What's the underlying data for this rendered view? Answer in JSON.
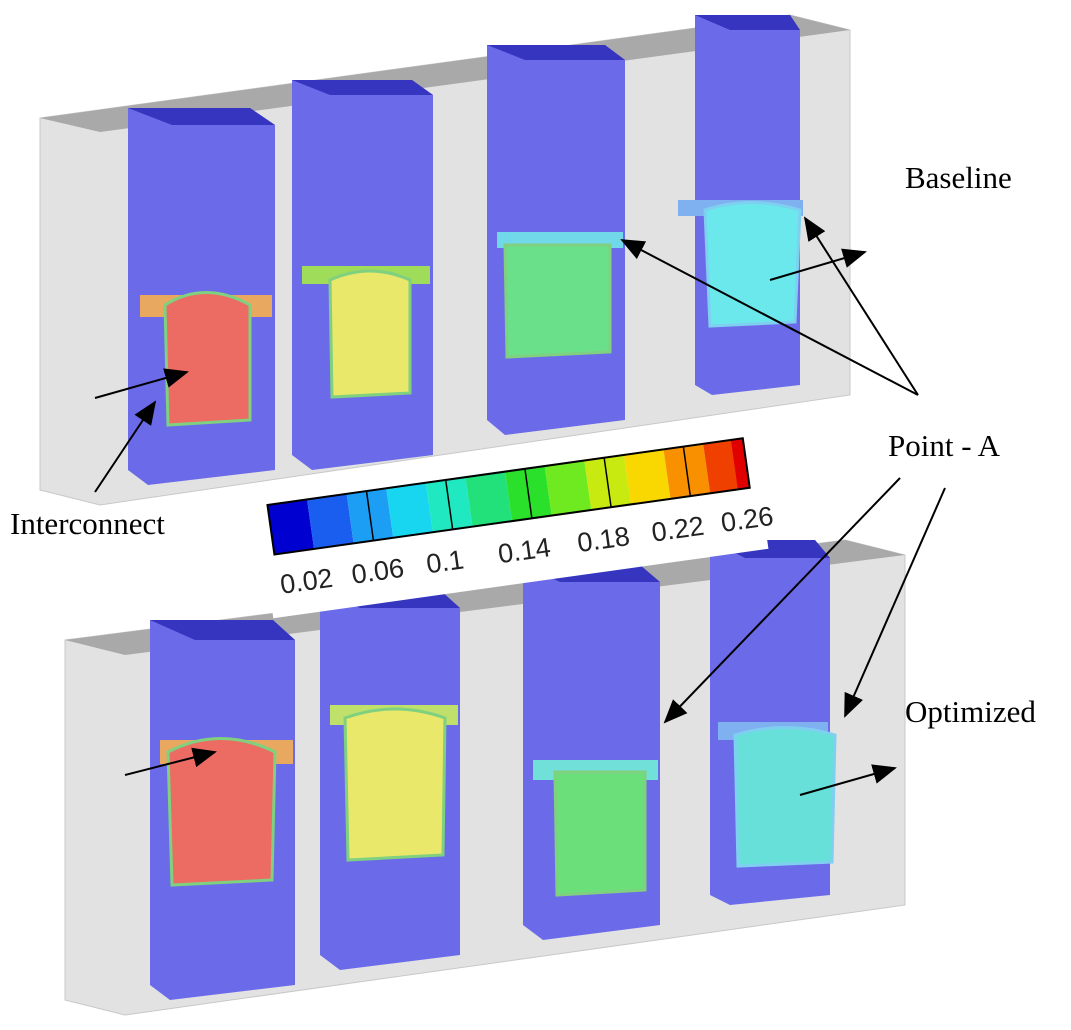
{
  "labels": {
    "baseline": "Baseline",
    "point_a": "Point - A",
    "interconnect": "Interconnect",
    "optimized": "Optimized"
  },
  "colorbar": {
    "labels": [
      "0.02",
      "0.06",
      "0.1",
      "0.14",
      "0.18",
      "0.22",
      "0.26"
    ]
  }
}
